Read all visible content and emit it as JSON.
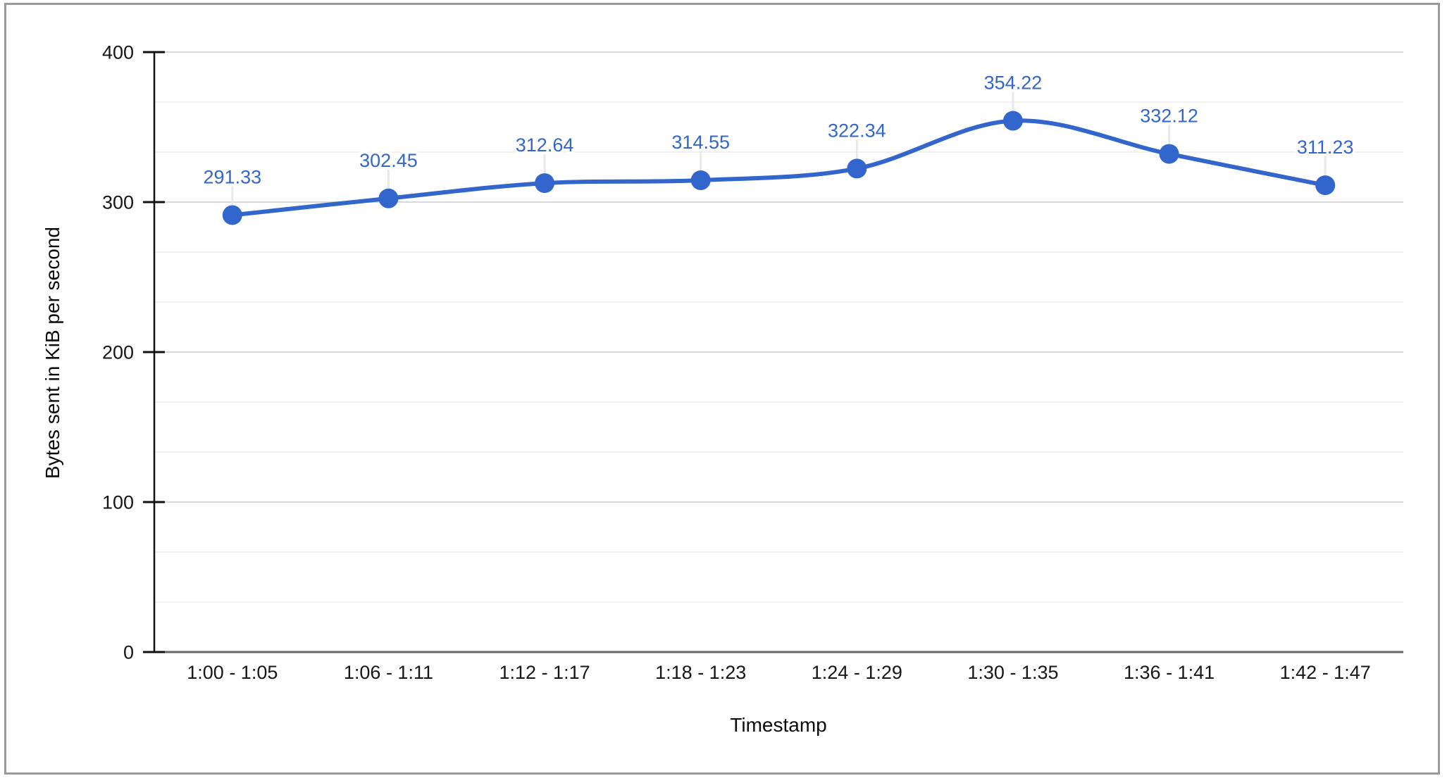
{
  "chart_data": {
    "type": "line",
    "categories": [
      "1:00 - 1:05",
      "1:06 - 1:11",
      "1:12 - 1:17",
      "1:18 - 1:23",
      "1:24 - 1:29",
      "1:30 - 1:35",
      "1:36 - 1:41",
      "1:42 - 1:47"
    ],
    "values": [
      291.33,
      302.45,
      312.64,
      314.55,
      322.34,
      354.22,
      332.12,
      311.23
    ],
    "point_labels": [
      "291.33",
      "302.45",
      "312.64",
      "314.55",
      "322.34",
      "354.22",
      "332.12",
      "311.23"
    ],
    "title": "",
    "xlabel": "Timestamp",
    "ylabel": "Bytes sent in KiB per second",
    "ylim": [
      0,
      400
    ],
    "yticks": [
      0,
      100,
      200,
      300,
      400
    ],
    "ytick_labels": [
      "0",
      "100",
      "200",
      "300",
      "400"
    ],
    "minor_gridlines_between_majors": 2,
    "smooth_line": true,
    "show_point_labels": true,
    "legend": "none",
    "series_color": "#3366cc",
    "point_label_color": "#3366cc"
  }
}
